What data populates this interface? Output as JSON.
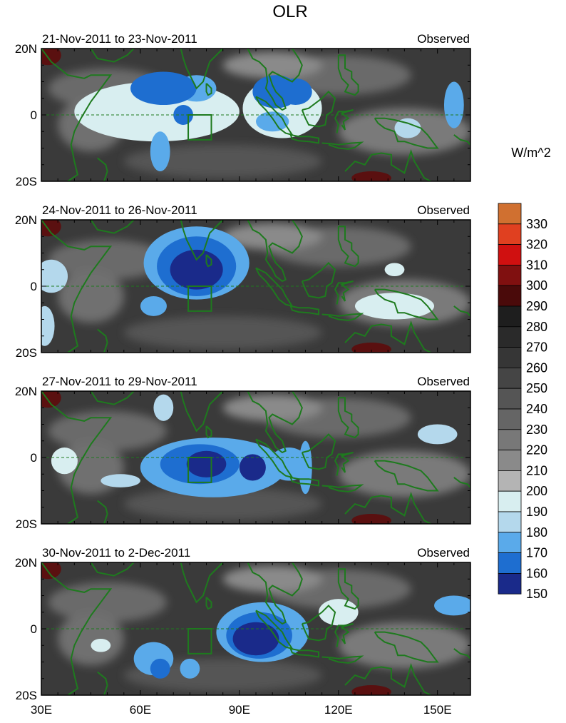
{
  "figure_title": "OLR",
  "units": "W/m^2",
  "colorbar": {
    "labels": [
      "330",
      "320",
      "310",
      "300",
      "290",
      "280",
      "270",
      "260",
      "250",
      "240",
      "230",
      "220",
      "210",
      "200",
      "190",
      "180",
      "170",
      "160",
      "150"
    ],
    "colors": [
      "#d07030",
      "#e04020",
      "#d01010",
      "#801010",
      "#4a0a0a",
      "#1e1e1e",
      "#2a2a2a",
      "#363636",
      "#454545",
      "#555555",
      "#656565",
      "#787878",
      "#8a8a8a",
      "#b4b4b4",
      "#d8eef0",
      "#b4d8ec",
      "#5aaaea",
      "#1e6ed0",
      "#1a2a8a"
    ]
  },
  "lat_labels": [
    "20N",
    "0",
    "20S"
  ],
  "lon_labels": [
    "30E",
    "60E",
    "90E",
    "120E",
    "150E"
  ],
  "panels": [
    {
      "period": "21-Nov-2011 to 23-Nov-2011",
      "label": "Observed"
    },
    {
      "period": "24-Nov-2011 to 26-Nov-2011",
      "label": "Observed"
    },
    {
      "period": "27-Nov-2011 to 29-Nov-2011",
      "label": "Observed"
    },
    {
      "period": "30-Nov-2011 to 2-Dec-2011",
      "label": "Observed"
    }
  ],
  "map_extent": {
    "lon": [
      30,
      160
    ],
    "lat": [
      -20,
      20
    ]
  },
  "colors": {
    "coast": "#1e7a1e",
    "equator": "#1e7a1e",
    "background": "#3a3a3a",
    "box": "#1e7a1e"
  },
  "fields": [
    {
      "low_olr_regions": [
        {
          "lon": 67,
          "lat": 8,
          "rx": 10,
          "ry": 5,
          "level": "160"
        },
        {
          "lon": 77,
          "lat": 8,
          "rx": 6,
          "ry": 4,
          "level": "170"
        },
        {
          "lon": 101,
          "lat": 7,
          "rx": 7,
          "ry": 5,
          "level": "160"
        },
        {
          "lon": 107,
          "lat": 7,
          "rx": 5,
          "ry": 4,
          "level": "160"
        },
        {
          "lon": 66,
          "lat": -11,
          "rx": 3,
          "ry": 6,
          "level": "170"
        },
        {
          "lon": 73,
          "lat": 0,
          "rx": 3,
          "ry": 3,
          "level": "160"
        },
        {
          "lon": 100,
          "lat": -2,
          "rx": 5,
          "ry": 3,
          "level": "170"
        },
        {
          "lon": 155,
          "lat": 3,
          "rx": 3,
          "ry": 7,
          "level": "170"
        },
        {
          "lon": 141,
          "lat": -4,
          "rx": 4,
          "ry": 3,
          "level": "180"
        },
        {
          "lon": 65,
          "lat": 1,
          "rx": 25,
          "ry": 9,
          "level": "190"
        },
        {
          "lon": 103,
          "lat": 2,
          "rx": 12,
          "ry": 9,
          "level": "190"
        }
      ]
    },
    {
      "low_olr_regions": [
        {
          "lon": 77,
          "lat": 7,
          "rx": 16,
          "ry": 11,
          "level": "170"
        },
        {
          "lon": 77,
          "lat": 6,
          "rx": 12,
          "ry": 9,
          "level": "160"
        },
        {
          "lon": 77,
          "lat": 5,
          "rx": 8,
          "ry": 6,
          "level": "150"
        },
        {
          "lon": 64,
          "lat": -6,
          "rx": 4,
          "ry": 3,
          "level": "170"
        },
        {
          "lon": 33,
          "lat": 3,
          "rx": 5,
          "ry": 5,
          "level": "180"
        },
        {
          "lon": 31,
          "lat": -12,
          "rx": 3,
          "ry": 6,
          "level": "180"
        },
        {
          "lon": 137,
          "lat": -6,
          "rx": 12,
          "ry": 4,
          "level": "190"
        },
        {
          "lon": 137,
          "lat": 5,
          "rx": 3,
          "ry": 2,
          "level": "190"
        }
      ]
    },
    {
      "low_olr_regions": [
        {
          "lon": 82,
          "lat": -3,
          "rx": 22,
          "ry": 9,
          "level": "170"
        },
        {
          "lon": 78,
          "lat": -2,
          "rx": 12,
          "ry": 6,
          "level": "160"
        },
        {
          "lon": 80,
          "lat": -2,
          "rx": 6,
          "ry": 4,
          "level": "150"
        },
        {
          "lon": 94,
          "lat": -3,
          "rx": 4,
          "ry": 4,
          "level": "150"
        },
        {
          "lon": 67,
          "lat": 15,
          "rx": 3,
          "ry": 4,
          "level": "180"
        },
        {
          "lon": 105,
          "lat": -2,
          "rx": 6,
          "ry": 5,
          "level": "170"
        },
        {
          "lon": 110,
          "lat": -3,
          "rx": 2,
          "ry": 8,
          "level": "170"
        },
        {
          "lon": 150,
          "lat": 7,
          "rx": 6,
          "ry": 3,
          "level": "180"
        },
        {
          "lon": 37,
          "lat": -1,
          "rx": 4,
          "ry": 4,
          "level": "190"
        },
        {
          "lon": 54,
          "lat": -7,
          "rx": 6,
          "ry": 2,
          "level": "180"
        }
      ]
    },
    {
      "low_olr_regions": [
        {
          "lon": 97,
          "lat": -1,
          "rx": 14,
          "ry": 9,
          "level": "170"
        },
        {
          "lon": 96,
          "lat": -2,
          "rx": 10,
          "ry": 7,
          "level": "160"
        },
        {
          "lon": 95,
          "lat": -3,
          "rx": 7,
          "ry": 5,
          "level": "150"
        },
        {
          "lon": 64,
          "lat": -9,
          "rx": 6,
          "ry": 5,
          "level": "170"
        },
        {
          "lon": 66,
          "lat": -12,
          "rx": 3,
          "ry": 3,
          "level": "160"
        },
        {
          "lon": 75,
          "lat": -12,
          "rx": 3,
          "ry": 3,
          "level": "170"
        },
        {
          "lon": 155,
          "lat": 7,
          "rx": 6,
          "ry": 3,
          "level": "170"
        },
        {
          "lon": 120,
          "lat": 5,
          "rx": 6,
          "ry": 4,
          "level": "190"
        },
        {
          "lon": 48,
          "lat": -5,
          "rx": 3,
          "ry": 2,
          "level": "190"
        }
      ]
    }
  ]
}
